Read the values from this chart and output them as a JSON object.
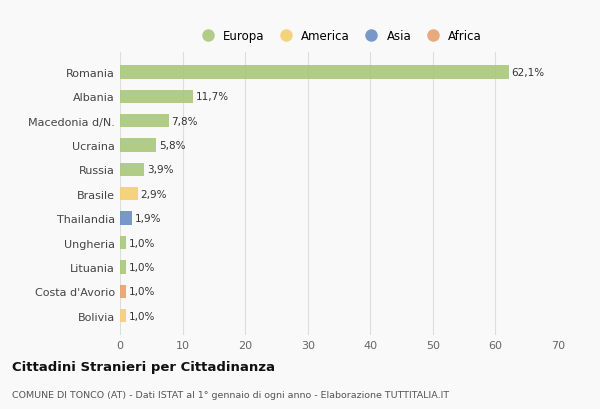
{
  "categories": [
    "Romania",
    "Albania",
    "Macedonia d/N.",
    "Ucraina",
    "Russia",
    "Brasile",
    "Thailandia",
    "Ungheria",
    "Lituania",
    "Costa d'Avorio",
    "Bolivia"
  ],
  "values": [
    62.1,
    11.7,
    7.8,
    5.8,
    3.9,
    2.9,
    1.9,
    1.0,
    1.0,
    1.0,
    1.0
  ],
  "labels": [
    "62,1%",
    "11,7%",
    "7,8%",
    "5,8%",
    "3,9%",
    "2,9%",
    "1,9%",
    "1,0%",
    "1,0%",
    "1,0%",
    "1,0%"
  ],
  "continents": [
    "Europa",
    "Europa",
    "Europa",
    "Europa",
    "Europa",
    "America",
    "Asia",
    "Europa",
    "Europa",
    "Africa",
    "America"
  ],
  "colors": {
    "Europa": "#a8c87a",
    "America": "#f5ce6e",
    "Asia": "#6a8ec2",
    "Africa": "#e8a070"
  },
  "legend_order": [
    "Europa",
    "America",
    "Asia",
    "Africa"
  ],
  "xlim": [
    0,
    70
  ],
  "xticks": [
    0,
    10,
    20,
    30,
    40,
    50,
    60,
    70
  ],
  "title": "Cittadini Stranieri per Cittadinanza",
  "subtitle": "COMUNE DI TONCO (AT) - Dati ISTAT al 1° gennaio di ogni anno - Elaborazione TUTTITALIA.IT",
  "bg_color": "#f9f9f9",
  "grid_color": "#dddddd",
  "bar_height": 0.55
}
